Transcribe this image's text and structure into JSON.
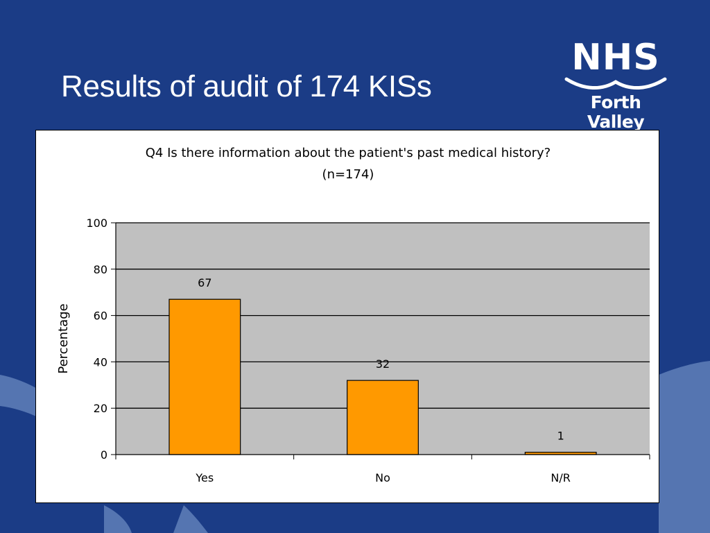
{
  "slide": {
    "title": "Results of audit of 174 KISs"
  },
  "logo": {
    "line1": "NHS",
    "line2": "Forth Valley"
  },
  "colors": {
    "background": "#1b3c86",
    "bar_fill": "#ff9900",
    "plot_area": "#c0c0c0",
    "waves": "#5f7fb8"
  },
  "chart_data": {
    "type": "bar",
    "title": "Q4 Is there information about the patient's past medical history?",
    "subtitle": "(n=174)",
    "categories": [
      "Yes",
      "No",
      "N/R"
    ],
    "values": [
      67,
      32,
      1
    ],
    "data_labels": [
      "67",
      "32",
      "1"
    ],
    "ylabel": "Percentage",
    "xlabel": "",
    "ylim": [
      0,
      100
    ],
    "yticks": [
      0,
      20,
      40,
      60,
      80,
      100
    ],
    "grid": true
  }
}
